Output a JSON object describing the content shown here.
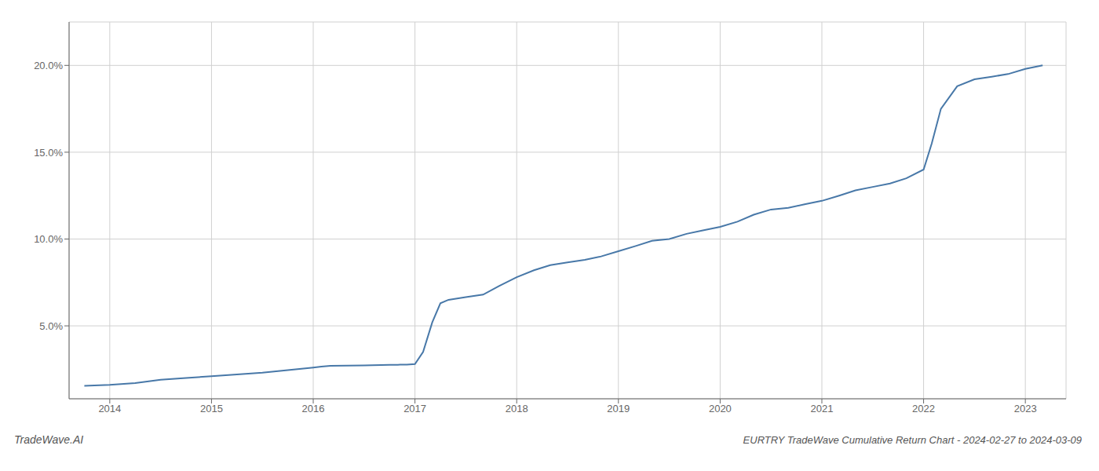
{
  "chart_data": {
    "type": "line",
    "title": "EURTRY TradeWave Cumulative Return Chart - 2024-02-27 to 2024-03-09",
    "annotations": [
      "TradeWave.AI"
    ],
    "x": [
      2013.75,
      2014.0,
      2014.25,
      2014.5,
      2014.75,
      2015.0,
      2015.25,
      2015.5,
      2015.75,
      2016.0,
      2016.08,
      2016.17,
      2016.5,
      2016.58,
      2016.67,
      2016.75,
      2016.83,
      2016.92,
      2017.0,
      2017.08,
      2017.17,
      2017.25,
      2017.33,
      2017.5,
      2017.67,
      2017.83,
      2018.0,
      2018.17,
      2018.33,
      2018.5,
      2018.67,
      2018.83,
      2019.0,
      2019.17,
      2019.33,
      2019.5,
      2019.67,
      2019.83,
      2020.0,
      2020.17,
      2020.33,
      2020.5,
      2020.67,
      2020.83,
      2021.0,
      2021.17,
      2021.33,
      2021.5,
      2021.67,
      2021.83,
      2022.0,
      2022.08,
      2022.17,
      2022.33,
      2022.5,
      2022.67,
      2022.83,
      2023.0,
      2023.17
    ],
    "values": [
      1.55,
      1.6,
      1.7,
      1.9,
      2.0,
      2.1,
      2.2,
      2.3,
      2.45,
      2.6,
      2.65,
      2.7,
      2.72,
      2.73,
      2.74,
      2.75,
      2.76,
      2.77,
      2.8,
      3.5,
      5.2,
      6.3,
      6.5,
      6.65,
      6.8,
      7.3,
      7.8,
      8.2,
      8.5,
      8.65,
      8.8,
      9.0,
      9.3,
      9.6,
      9.9,
      10.0,
      10.3,
      10.5,
      10.7,
      11.0,
      11.4,
      11.7,
      11.8,
      12.0,
      12.2,
      12.5,
      12.8,
      13.0,
      13.2,
      13.5,
      14.0,
      15.5,
      17.5,
      18.8,
      19.2,
      19.35,
      19.5,
      19.8,
      20.0
    ],
    "color": "#4878a8",
    "xlim": [
      2013.6,
      2023.4
    ],
    "xticks": [
      2014,
      2015,
      2016,
      2017,
      2018,
      2019,
      2020,
      2021,
      2022,
      2023
    ],
    "ylim": [
      0.8,
      22.5
    ],
    "yticks": [
      {
        "value": 5.0,
        "label": "5.0%"
      },
      {
        "value": 10.0,
        "label": "10.0%"
      },
      {
        "value": 15.0,
        "label": "15.0%"
      },
      {
        "value": 20.0,
        "label": "20.0%"
      }
    ],
    "grid": true
  }
}
